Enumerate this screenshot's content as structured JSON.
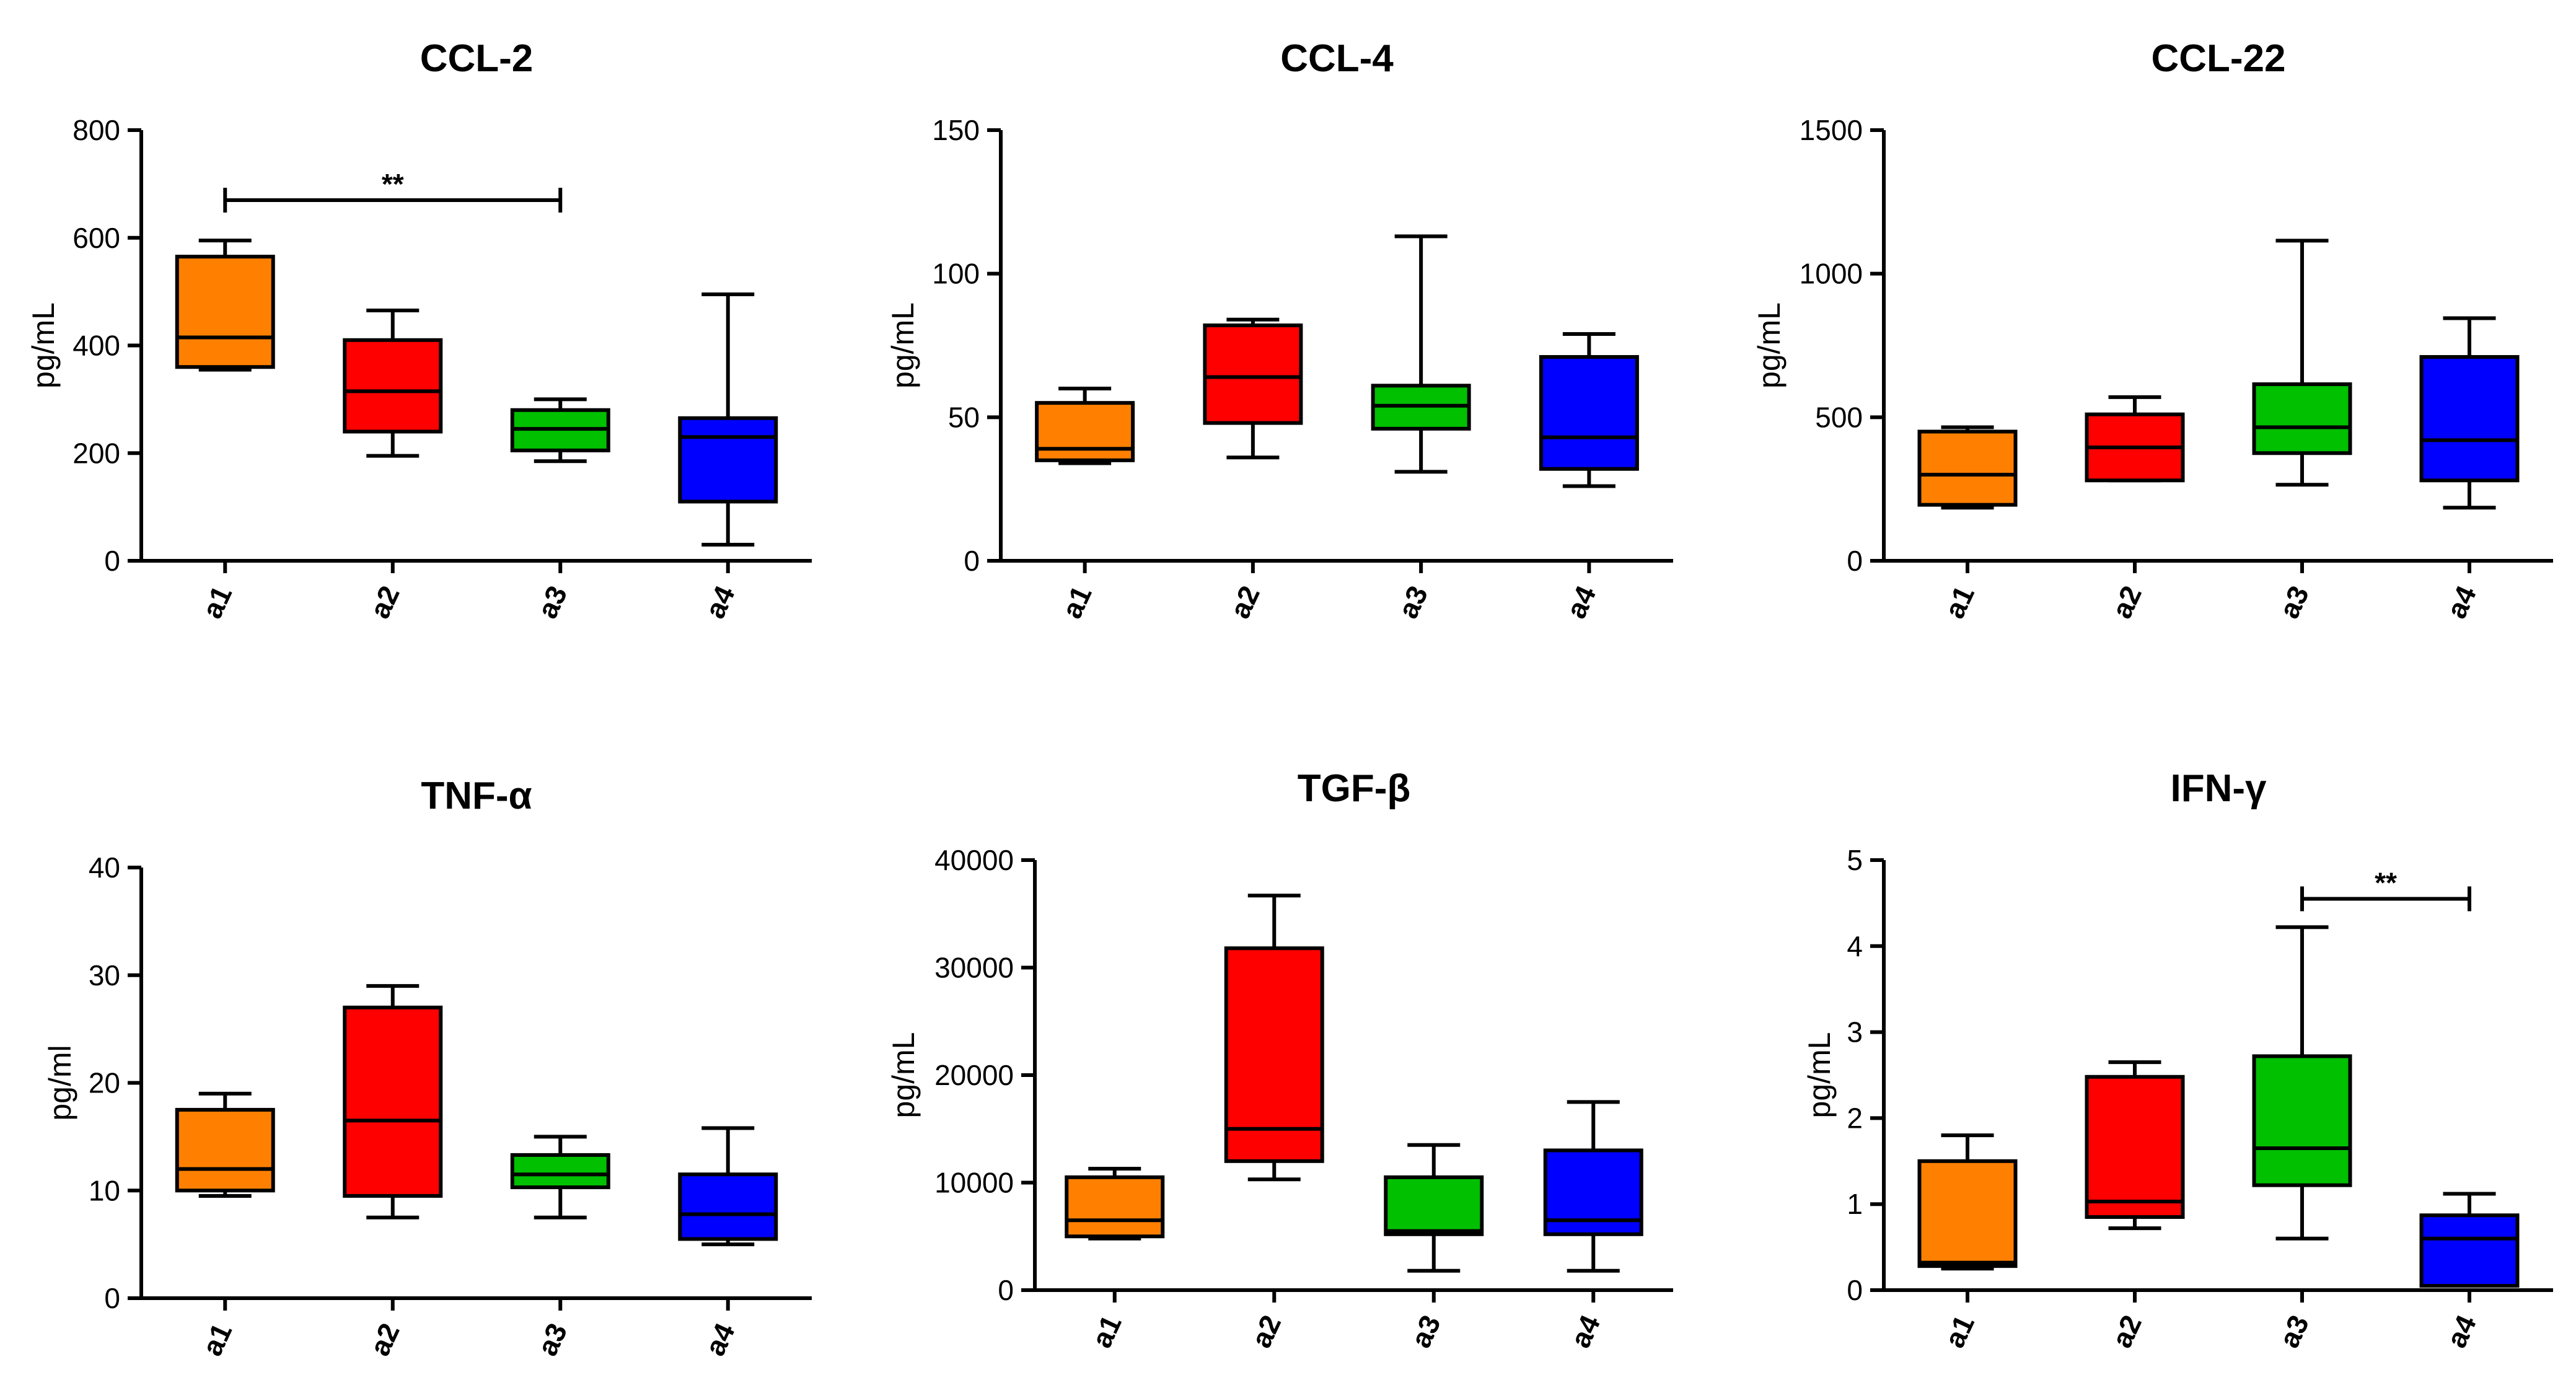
{
  "chart_data": [
    {
      "type": "box",
      "title": "CCL-2",
      "ylabel": "pg/mL",
      "ylim": [
        0,
        800
      ],
      "yticks": [
        0,
        200,
        400,
        600,
        800
      ],
      "ytick_labels": [
        "0",
        "200",
        "400",
        "600",
        "800"
      ],
      "categories": [
        "a1",
        "a2",
        "a3",
        "a4"
      ],
      "colors": [
        "#FF8000",
        "#FF0000",
        "#00C000",
        "#0000FF"
      ],
      "boxes": [
        {
          "min": 355,
          "q1": 360,
          "median": 415,
          "q3": 565,
          "max": 595
        },
        {
          "min": 195,
          "q1": 240,
          "median": 315,
          "q3": 410,
          "max": 465
        },
        {
          "min": 185,
          "q1": 205,
          "median": 245,
          "q3": 280,
          "max": 300
        },
        {
          "min": 30,
          "q1": 110,
          "median": 230,
          "q3": 265,
          "max": 495
        }
      ],
      "significance": [
        {
          "from": 0,
          "to": 2,
          "label": "**",
          "y": 670
        }
      ]
    },
    {
      "type": "box",
      "title": "CCL-4",
      "ylabel": "pg/mL",
      "ylim": [
        0,
        150
      ],
      "yticks": [
        0,
        50,
        100,
        150
      ],
      "ytick_labels": [
        "0",
        "50",
        "100",
        "150"
      ],
      "categories": [
        "a1",
        "a2",
        "a3",
        "a4"
      ],
      "colors": [
        "#FF8000",
        "#FF0000",
        "#00C000",
        "#0000FF"
      ],
      "boxes": [
        {
          "min": 34,
          "q1": 35,
          "median": 39,
          "q3": 55,
          "max": 60
        },
        {
          "min": 36,
          "q1": 48,
          "median": 64,
          "q3": 82,
          "max": 84
        },
        {
          "min": 31,
          "q1": 46,
          "median": 54,
          "q3": 61,
          "max": 113
        },
        {
          "min": 26,
          "q1": 32,
          "median": 43,
          "q3": 71,
          "max": 79
        }
      ],
      "significance": []
    },
    {
      "type": "box",
      "title": "CCL-22",
      "ylabel": "pg/mL",
      "ylim": [
        0,
        1500
      ],
      "yticks": [
        0,
        500,
        1000,
        1500
      ],
      "ytick_labels": [
        "0",
        "500",
        "1000",
        "1500"
      ],
      "categories": [
        "a1",
        "a2",
        "a3",
        "a4"
      ],
      "colors": [
        "#FF8000",
        "#FF0000",
        "#00C000",
        "#0000FF"
      ],
      "boxes": [
        {
          "min": 185,
          "q1": 195,
          "median": 300,
          "q3": 450,
          "max": 465
        },
        {
          "min": 280,
          "q1": 280,
          "median": 395,
          "q3": 510,
          "max": 570
        },
        {
          "min": 265,
          "q1": 375,
          "median": 465,
          "q3": 615,
          "max": 1115
        },
        {
          "min": 185,
          "q1": 280,
          "median": 420,
          "q3": 710,
          "max": 845
        }
      ],
      "significance": []
    },
    {
      "type": "box",
      "title": "TNF-α",
      "ylabel": "pg/ml",
      "ylim": [
        0,
        40
      ],
      "yticks": [
        0,
        10,
        20,
        30,
        40
      ],
      "ytick_labels": [
        "0",
        "10",
        "20",
        "30",
        "40"
      ],
      "categories": [
        "a1",
        "a2",
        "a3",
        "a4"
      ],
      "colors": [
        "#FF8000",
        "#FF0000",
        "#00C000",
        "#0000FF"
      ],
      "boxes": [
        {
          "min": 9.5,
          "q1": 10,
          "median": 12,
          "q3": 17.5,
          "max": 19
        },
        {
          "min": 7.5,
          "q1": 9.5,
          "median": 16.5,
          "q3": 27,
          "max": 29
        },
        {
          "min": 7.5,
          "q1": 10.3,
          "median": 11.5,
          "q3": 13.3,
          "max": 15
        },
        {
          "min": 5,
          "q1": 5.5,
          "median": 7.8,
          "q3": 11.5,
          "max": 15.8
        }
      ],
      "significance": []
    },
    {
      "type": "box",
      "title": "TGF-β",
      "ylabel": "pg/mL",
      "ylim": [
        0,
        40000
      ],
      "yticks": [
        0,
        10000,
        20000,
        30000,
        40000
      ],
      "ytick_labels": [
        "0",
        "10000",
        "20000",
        "30000",
        "40000"
      ],
      "categories": [
        "a1",
        "a2",
        "a3",
        "a4"
      ],
      "colors": [
        "#FF8000",
        "#FF0000",
        "#00C000",
        "#0000FF"
      ],
      "boxes": [
        {
          "min": 4800,
          "q1": 5000,
          "median": 6500,
          "q3": 10500,
          "max": 11300
        },
        {
          "min": 10300,
          "q1": 12000,
          "median": 15000,
          "q3": 31800,
          "max": 36700
        },
        {
          "min": 1800,
          "q1": 5200,
          "median": 5500,
          "q3": 10500,
          "max": 13500
        },
        {
          "min": 1800,
          "q1": 5200,
          "median": 6500,
          "q3": 13000,
          "max": 17500
        }
      ],
      "significance": []
    },
    {
      "type": "box",
      "title": "IFN-γ",
      "ylabel": "pg/mL",
      "ylim": [
        0,
        5
      ],
      "yticks": [
        0,
        1,
        2,
        3,
        4,
        5
      ],
      "ytick_labels": [
        "0",
        "1",
        "2",
        "3",
        "4",
        "5"
      ],
      "categories": [
        "a1",
        "a2",
        "a3",
        "a4"
      ],
      "colors": [
        "#FF8000",
        "#FF0000",
        "#00C000",
        "#0000FF"
      ],
      "boxes": [
        {
          "min": 0.25,
          "q1": 0.28,
          "median": 0.32,
          "q3": 1.5,
          "max": 1.8
        },
        {
          "min": 0.72,
          "q1": 0.85,
          "median": 1.03,
          "q3": 2.48,
          "max": 2.65
        },
        {
          "min": 0.6,
          "q1": 1.22,
          "median": 1.65,
          "q3": 2.72,
          "max": 4.22
        },
        {
          "min": 0.05,
          "q1": 0.05,
          "median": 0.6,
          "q3": 0.87,
          "max": 1.12
        }
      ],
      "significance": [
        {
          "from": 2,
          "to": 3,
          "label": "**",
          "y": 4.55
        }
      ]
    }
  ]
}
